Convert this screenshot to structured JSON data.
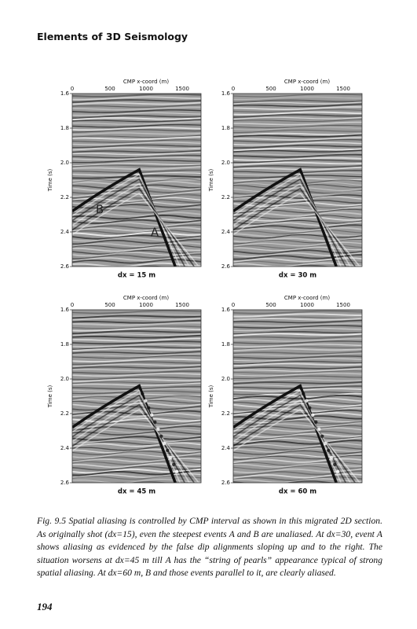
{
  "header": {
    "title": "Elements of 3D Seismology"
  },
  "figure": {
    "x_axis_label": "CMP x-coord (m)",
    "y_axis_label": "Time (s)",
    "x_ticks": [
      "0",
      "500",
      "1000",
      "1500"
    ],
    "y_ticks": [
      "1.6",
      "1.8",
      "2.0",
      "2.2",
      "2.4",
      "2.6"
    ],
    "panels": [
      {
        "caption": "dx = 15 m",
        "annotations": [
          "B",
          "A"
        ]
      },
      {
        "caption": "dx = 30 m"
      },
      {
        "caption": "dx = 45 m"
      },
      {
        "caption": "dx = 60 m"
      }
    ]
  },
  "caption": "Fig. 9.5 Spatial aliasing is controlled by CMP interval as shown in this migrated 2D section. As originally shot (dx=15), even the steepest events A and B are unaliased. At dx=30, event A shows aliasing as evidenced by the false dip alignments sloping up and to the right. The situation worsens at dx=45 m till A has the “string of pearls” appearance typical of strong spatial aliasing. At dx=60 m, B and those events parallel to it, are clearly aliased.",
  "page_number": "194"
}
